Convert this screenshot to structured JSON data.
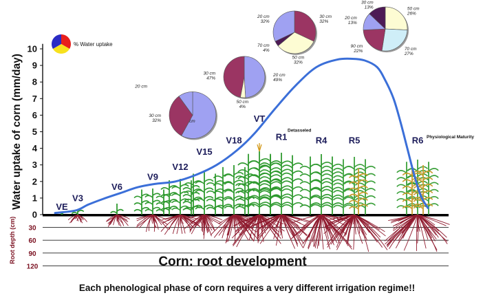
{
  "chart_data": {
    "type": "line",
    "ylabel": "Water uptake of corn (mm/day)",
    "yticks": [
      0,
      1,
      2,
      3,
      4,
      5,
      6,
      7,
      8,
      9,
      10
    ],
    "ylim": [
      0,
      10
    ],
    "stages": [
      {
        "name": "VE",
        "x": 90,
        "y": 0.3
      },
      {
        "name": "V3",
        "x": 113,
        "y": 0.8
      },
      {
        "name": "V6",
        "x": 170,
        "y": 1.5
      },
      {
        "name": "V9",
        "x": 222,
        "y": 2.1
      },
      {
        "name": "V12",
        "x": 262,
        "y": 2.7
      },
      {
        "name": "V15",
        "x": 297,
        "y": 3.6
      },
      {
        "name": "V18",
        "x": 340,
        "y": 4.3
      },
      {
        "name": "VT",
        "x": 377,
        "y": 5.6
      },
      {
        "name": "R1",
        "x": 409,
        "y": 4.5
      },
      {
        "name": "R4",
        "x": 467,
        "y": 4.3
      },
      {
        "name": "R5",
        "x": 515,
        "y": 4.3
      },
      {
        "name": "R6",
        "x": 607,
        "y": 4.3
      }
    ],
    "stage_notes": [
      {
        "text": "Detasseled",
        "x": 418,
        "y": 5.0
      },
      {
        "text": "Physiological Maturity",
        "x": 620,
        "y": 4.6
      }
    ],
    "curve": {
      "color": "#3b6fd8",
      "points": [
        [
          80,
          0.1
        ],
        [
          110,
          0.25
        ],
        [
          128,
          0.6
        ],
        [
          150,
          0.95
        ],
        [
          175,
          1.3
        ],
        [
          200,
          1.65
        ],
        [
          225,
          1.85
        ],
        [
          255,
          2.0
        ],
        [
          285,
          2.4
        ],
        [
          315,
          3.0
        ],
        [
          345,
          3.9
        ],
        [
          370,
          4.9
        ],
        [
          400,
          6.4
        ],
        [
          430,
          7.8
        ],
        [
          460,
          8.9
        ],
        [
          490,
          9.35
        ],
        [
          512,
          9.4
        ],
        [
          530,
          9.3
        ],
        [
          548,
          8.9
        ],
        [
          560,
          8.1
        ],
        [
          572,
          7.0
        ],
        [
          582,
          5.6
        ],
        [
          592,
          4.0
        ],
        [
          602,
          2.4
        ],
        [
          612,
          1.1
        ],
        [
          622,
          0.4
        ]
      ]
    },
    "root_depth": {
      "label": "Root depth (cm)",
      "ticks": [
        30,
        60,
        90,
        120
      ]
    },
    "legend": {
      "label": "% Water uptake",
      "colors": [
        "#e8201c",
        "#f7e11d",
        "#2a2bc4"
      ]
    },
    "pies": [
      {
        "x": 280,
        "y": 6.0,
        "slices": [
          {
            "label": "20 cm",
            "pct": "",
            "value": 58,
            "color": "#9fa1f2",
            "lx": -14
          },
          {
            "label": "30 cm",
            "pct": "32%",
            "value": 32,
            "color": "#9b3563"
          },
          {
            "label": "20 cm",
            "pct": "",
            "value": 10,
            "color": "#9fa1f2",
            "lx": -66
          }
        ]
      },
      {
        "x": 355,
        "y": 8.3,
        "slices": [
          {
            "label": "20 cm",
            "pct": "49%",
            "value": 49,
            "color": "#9fa1f2"
          },
          {
            "label": "50 cm",
            "pct": "4%",
            "value": 4,
            "color": "#fdfcd3"
          },
          {
            "label": "30 cm",
            "pct": "47%",
            "value": 47,
            "color": "#9b3563"
          }
        ]
      },
      {
        "x": 428,
        "y": 11.0,
        "slices": [
          {
            "label": "30 cm",
            "pct": "32%",
            "value": 32,
            "color": "#9b3563"
          },
          {
            "label": "50 cm",
            "pct": "32%",
            "value": 32,
            "color": "#fdfcd3"
          },
          {
            "label": "70 cm",
            "pct": "4%",
            "value": 4,
            "color": "#4d1a55"
          },
          {
            "label": "20 cm",
            "pct": "32%",
            "value": 32,
            "color": "#9fa1f2"
          }
        ]
      },
      {
        "x": 560,
        "y": 11.2,
        "slices": [
          {
            "label": "50 cm",
            "pct": "26%",
            "value": 26,
            "color": "#fdfcd3"
          },
          {
            "label": "70 cm",
            "pct": "27%",
            "value": 27,
            "color": "#cfeef8"
          },
          {
            "label": "90 cm",
            "pct": "22%",
            "value": 22,
            "color": "#9b3563"
          },
          {
            "label": "20 cm",
            "pct": "13%",
            "value": 13,
            "color": "#9fa1f2"
          },
          {
            "label": "30 cm",
            "pct": "13%",
            "value": 13,
            "color": "#4d1a55"
          }
        ]
      }
    ],
    "title": "Corn: root development"
  },
  "footer": "Each phenological phase of corn requires a very different irrigation regime!!"
}
